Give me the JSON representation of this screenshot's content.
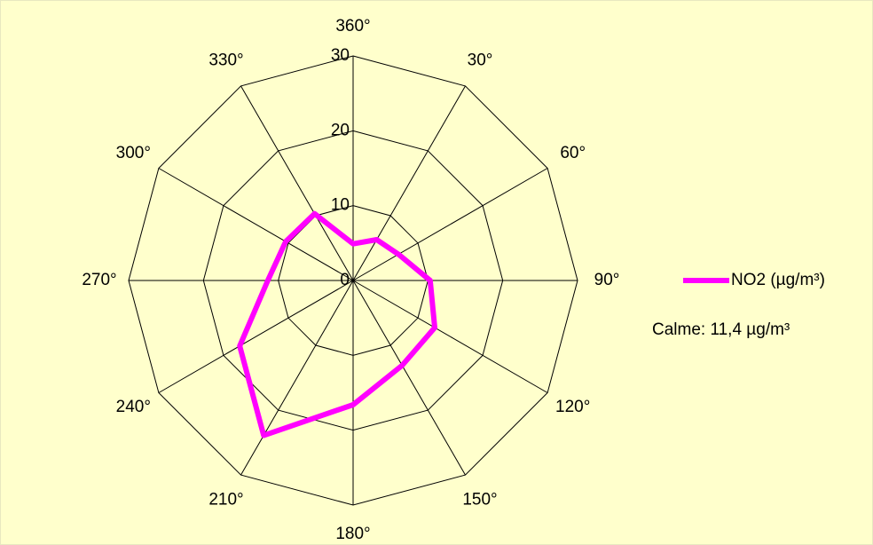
{
  "chart_data": {
    "type": "radar",
    "categories": [
      "360°",
      "30°",
      "60°",
      "90°",
      "120°",
      "150°",
      "180°",
      "210°",
      "240°",
      "270°",
      "300°",
      "330°"
    ],
    "series": [
      {
        "name": "NO2 (µg/m³)",
        "color": "#ff00ff",
        "values": [
          4.9,
          6.3,
          7.0,
          10.3,
          12.6,
          13.1,
          16.6,
          23.9,
          17.5,
          11.4,
          10.4,
          10.3
        ]
      }
    ],
    "ylim": [
      0,
      30
    ],
    "yticks": [
      0,
      10,
      20,
      30
    ],
    "grid": true,
    "legend": "right",
    "annotation": "Calme: 11,4 µg/m³"
  }
}
